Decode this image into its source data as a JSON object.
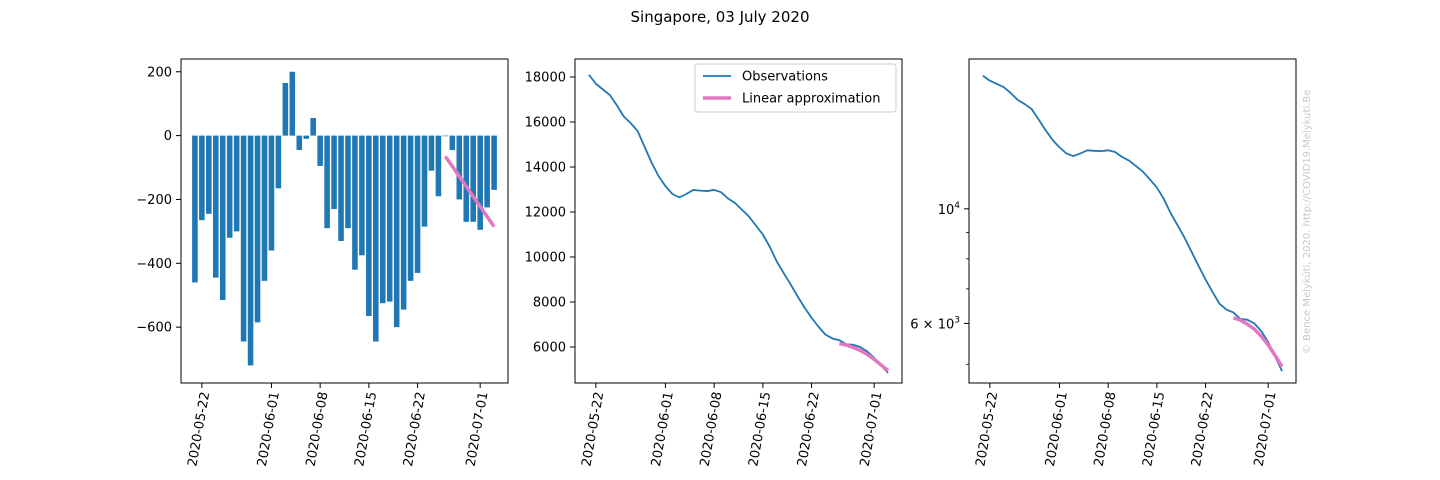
{
  "figure": {
    "title": "Singapore, 03 July 2020",
    "watermark": "© Bence Melykúti, 2020. http://COVID19.Melykuti.Be"
  },
  "colors": {
    "observations": "#1f77b4",
    "approximation": "#e377c2",
    "watermark": "#c8c8c8"
  },
  "chart_data": [
    {
      "type": "bar",
      "title": "",
      "x": [
        "2020-05-21",
        "2020-05-22",
        "2020-05-23",
        "2020-05-24",
        "2020-05-25",
        "2020-05-26",
        "2020-05-27",
        "2020-05-28",
        "2020-05-29",
        "2020-05-30",
        "2020-05-31",
        "2020-06-01",
        "2020-06-02",
        "2020-06-03",
        "2020-06-04",
        "2020-06-05",
        "2020-06-06",
        "2020-06-07",
        "2020-06-08",
        "2020-06-09",
        "2020-06-10",
        "2020-06-11",
        "2020-06-12",
        "2020-06-13",
        "2020-06-14",
        "2020-06-15",
        "2020-06-16",
        "2020-06-17",
        "2020-06-18",
        "2020-06-19",
        "2020-06-20",
        "2020-06-21",
        "2020-06-22",
        "2020-06-23",
        "2020-06-24",
        "2020-06-25",
        "2020-06-26",
        "2020-06-27",
        "2020-06-28",
        "2020-06-29",
        "2020-06-30",
        "2020-07-01",
        "2020-07-02",
        "2020-07-03"
      ],
      "series": [
        {
          "kind": "bar",
          "values": [
            -460,
            -265,
            -245,
            -445,
            -515,
            -320,
            -300,
            -645,
            -720,
            -585,
            -455,
            -360,
            -165,
            165,
            200,
            -45,
            -10,
            55,
            -95,
            -290,
            -230,
            -330,
            -290,
            -420,
            -375,
            -565,
            -645,
            -525,
            -520,
            -600,
            -545,
            -455,
            -430,
            -285,
            -110,
            -190,
            0,
            -45,
            -200,
            -270,
            -270,
            -295,
            -225,
            -170
          ]
        },
        {
          "kind": "line",
          "x": [
            "2020-06-26",
            "2020-07-03"
          ],
          "values": [
            -65,
            -285
          ]
        }
      ],
      "x_ticks": [
        "2020-05-22",
        "2020-06-01",
        "2020-06-08",
        "2020-06-15",
        "2020-06-22",
        "2020-07-01"
      ],
      "y_ticks": [
        200,
        0,
        -200,
        -400,
        -600
      ],
      "xlim": [
        "2020-05-19",
        "2020-07-05"
      ],
      "ylim": [
        -775,
        240
      ]
    },
    {
      "type": "line",
      "title": "",
      "series": [
        {
          "name": "Observations",
          "x": [
            "2020-05-21",
            "2020-05-22",
            "2020-05-23",
            "2020-05-24",
            "2020-05-25",
            "2020-05-26",
            "2020-05-27",
            "2020-05-28",
            "2020-05-29",
            "2020-05-30",
            "2020-05-31",
            "2020-06-01",
            "2020-06-02",
            "2020-06-03",
            "2020-06-04",
            "2020-06-05",
            "2020-06-06",
            "2020-06-07",
            "2020-06-08",
            "2020-06-09",
            "2020-06-10",
            "2020-06-11",
            "2020-06-12",
            "2020-06-13",
            "2020-06-14",
            "2020-06-15",
            "2020-06-16",
            "2020-06-17",
            "2020-06-18",
            "2020-06-19",
            "2020-06-20",
            "2020-06-21",
            "2020-06-22",
            "2020-06-23",
            "2020-06-24",
            "2020-06-25",
            "2020-06-26",
            "2020-06-27",
            "2020-06-28",
            "2020-06-29",
            "2020-06-30",
            "2020-07-01",
            "2020-07-02",
            "2020-07-03"
          ],
          "values": [
            18100,
            17700,
            17450,
            17200,
            16750,
            16250,
            15950,
            15600,
            14900,
            14200,
            13600,
            13150,
            12800,
            12650,
            12800,
            12980,
            12950,
            12930,
            12980,
            12880,
            12600,
            12400,
            12100,
            11800,
            11400,
            11000,
            10450,
            9800,
            9280,
            8780,
            8250,
            7750,
            7300,
            6900,
            6550,
            6380,
            6300,
            6120,
            6100,
            6000,
            5800,
            5520,
            5170,
            4850
          ]
        },
        {
          "name": "Linear approximation",
          "x": [
            "2020-06-26",
            "2020-06-27",
            "2020-06-28",
            "2020-06-29",
            "2020-06-30",
            "2020-07-01",
            "2020-07-02",
            "2020-07-03"
          ],
          "values": [
            6150,
            6090,
            5980,
            5850,
            5670,
            5450,
            5200,
            4950
          ]
        }
      ],
      "x_ticks": [
        "2020-05-22",
        "2020-06-01",
        "2020-06-08",
        "2020-06-15",
        "2020-06-22",
        "2020-07-01"
      ],
      "y_ticks": [
        18000,
        16000,
        14000,
        12000,
        10000,
        8000,
        6000
      ],
      "xlim": [
        "2020-05-19",
        "2020-07-05"
      ],
      "ylim": [
        4400,
        18800
      ],
      "legend": {
        "placement": "top-right"
      }
    },
    {
      "type": "line",
      "title": "",
      "log_y": true,
      "series": [
        {
          "name": "Observations",
          "x": [
            "2020-05-21",
            "2020-05-22",
            "2020-05-23",
            "2020-05-24",
            "2020-05-25",
            "2020-05-26",
            "2020-05-27",
            "2020-05-28",
            "2020-05-29",
            "2020-05-30",
            "2020-05-31",
            "2020-06-01",
            "2020-06-02",
            "2020-06-03",
            "2020-06-04",
            "2020-06-05",
            "2020-06-06",
            "2020-06-07",
            "2020-06-08",
            "2020-06-09",
            "2020-06-10",
            "2020-06-11",
            "2020-06-12",
            "2020-06-13",
            "2020-06-14",
            "2020-06-15",
            "2020-06-16",
            "2020-06-17",
            "2020-06-18",
            "2020-06-19",
            "2020-06-20",
            "2020-06-21",
            "2020-06-22",
            "2020-06-23",
            "2020-06-24",
            "2020-06-25",
            "2020-06-26",
            "2020-06-27",
            "2020-06-28",
            "2020-06-29",
            "2020-06-30",
            "2020-07-01",
            "2020-07-02",
            "2020-07-03"
          ],
          "values": [
            18100,
            17700,
            17450,
            17200,
            16750,
            16250,
            15950,
            15600,
            14900,
            14200,
            13600,
            13150,
            12800,
            12650,
            12800,
            12980,
            12950,
            12930,
            12980,
            12880,
            12600,
            12400,
            12100,
            11800,
            11400,
            11000,
            10450,
            9800,
            9280,
            8780,
            8250,
            7750,
            7300,
            6900,
            6550,
            6380,
            6300,
            6120,
            6100,
            6000,
            5800,
            5520,
            5170,
            4850
          ]
        },
        {
          "name": "Linear approximation",
          "x": [
            "2020-06-26",
            "2020-06-27",
            "2020-06-28",
            "2020-06-29",
            "2020-06-30",
            "2020-07-01",
            "2020-07-02",
            "2020-07-03"
          ],
          "values": [
            6150,
            6090,
            5980,
            5850,
            5670,
            5450,
            5200,
            4950
          ]
        }
      ],
      "x_ticks": [
        "2020-05-22",
        "2020-06-01",
        "2020-06-08",
        "2020-06-15",
        "2020-06-22",
        "2020-07-01"
      ],
      "y_major_ticks": [
        {
          "value": 10000,
          "base": "10",
          "exp": "4"
        },
        {
          "value": 6000,
          "base": "6 × 10",
          "exp": "3"
        }
      ],
      "y_minor_ticks": [
        5000,
        7000,
        8000,
        9000
      ],
      "xlim": [
        "2020-05-19",
        "2020-07-05"
      ],
      "ylim": [
        4600,
        19500
      ]
    }
  ]
}
